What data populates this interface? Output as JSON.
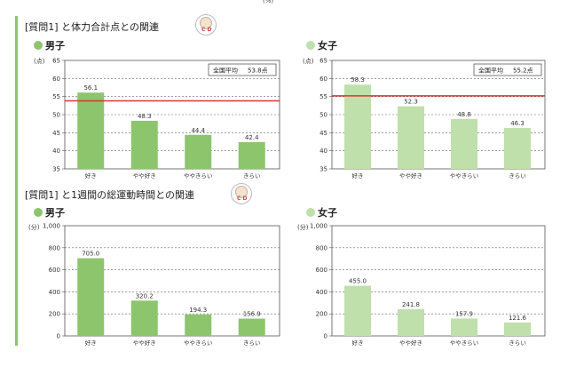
{
  "unit_top": "(%)",
  "sections": [
    {
      "title": "[質問1] と体力合計点との関連",
      "icon": "cd-icon",
      "icon_text": "C D"
    },
    {
      "title": "[質問1] と1週間の総運動時間との関連",
      "icon": "cd-icon",
      "icon_text": "C D"
    }
  ],
  "colors": {
    "male": "#8cc56c",
    "female": "#bfe0aa",
    "avg_line": "#d9362c",
    "accent": "#8cc56c"
  },
  "chart_data": [
    {
      "type": "bar",
      "panel_title": "男子",
      "unit_label": "(点)",
      "categories": [
        "好き",
        "やや好き",
        "ややきらい",
        "きらい"
      ],
      "values": [
        56.1,
        48.3,
        44.4,
        42.4
      ],
      "value_labels": [
        "56.1",
        "48.3",
        "44.4",
        "42.4"
      ],
      "ylim": [
        35,
        65
      ],
      "yticks": [
        35,
        40,
        45,
        50,
        55,
        60,
        65
      ],
      "ytick_labels": [
        "35",
        "40",
        "45",
        "50",
        "55",
        "60",
        "65"
      ],
      "reference_line": {
        "label": "全国平均",
        "value_text": "53.8点",
        "value": 53.8
      },
      "color": "#8cc56c",
      "grid": true
    },
    {
      "type": "bar",
      "panel_title": "女子",
      "unit_label": "(点)",
      "categories": [
        "好き",
        "やや好き",
        "ややきらい",
        "きらい"
      ],
      "values": [
        58.3,
        52.3,
        48.8,
        46.3
      ],
      "value_labels": [
        "58.3",
        "52.3",
        "48.8",
        "46.3"
      ],
      "ylim": [
        35,
        65
      ],
      "yticks": [
        35,
        40,
        45,
        50,
        55,
        60,
        65
      ],
      "ytick_labels": [
        "35",
        "40",
        "45",
        "50",
        "55",
        "60",
        "65"
      ],
      "reference_line": {
        "label": "全国平均",
        "value_text": "55.2点",
        "value": 55.2
      },
      "color": "#bfe0aa",
      "grid": true
    },
    {
      "type": "bar",
      "panel_title": "男子",
      "unit_label": "(分)",
      "categories": [
        "好き",
        "やや好き",
        "ややきらい",
        "きらい"
      ],
      "values": [
        705.0,
        320.2,
        194.3,
        156.9
      ],
      "value_labels": [
        "705.0",
        "320.2",
        "194.3",
        "156.9"
      ],
      "ylim": [
        0,
        1000
      ],
      "yticks": [
        0,
        200,
        400,
        600,
        800,
        1000
      ],
      "ytick_labels": [
        "0",
        "200",
        "400",
        "600",
        "800",
        "1,000"
      ],
      "color": "#8cc56c",
      "grid": true
    },
    {
      "type": "bar",
      "panel_title": "女子",
      "unit_label": "(分)",
      "categories": [
        "好き",
        "やや好き",
        "ややきらい",
        "きらい"
      ],
      "values": [
        455.0,
        241.8,
        157.9,
        121.6
      ],
      "value_labels": [
        "455.0",
        "241.8",
        "157.9",
        "121.6"
      ],
      "ylim": [
        0,
        1000
      ],
      "yticks": [
        0,
        200,
        400,
        600,
        800,
        1000
      ],
      "ytick_labels": [
        "0",
        "200",
        "400",
        "600",
        "800",
        "1,000"
      ],
      "color": "#bfe0aa",
      "grid": true
    }
  ]
}
